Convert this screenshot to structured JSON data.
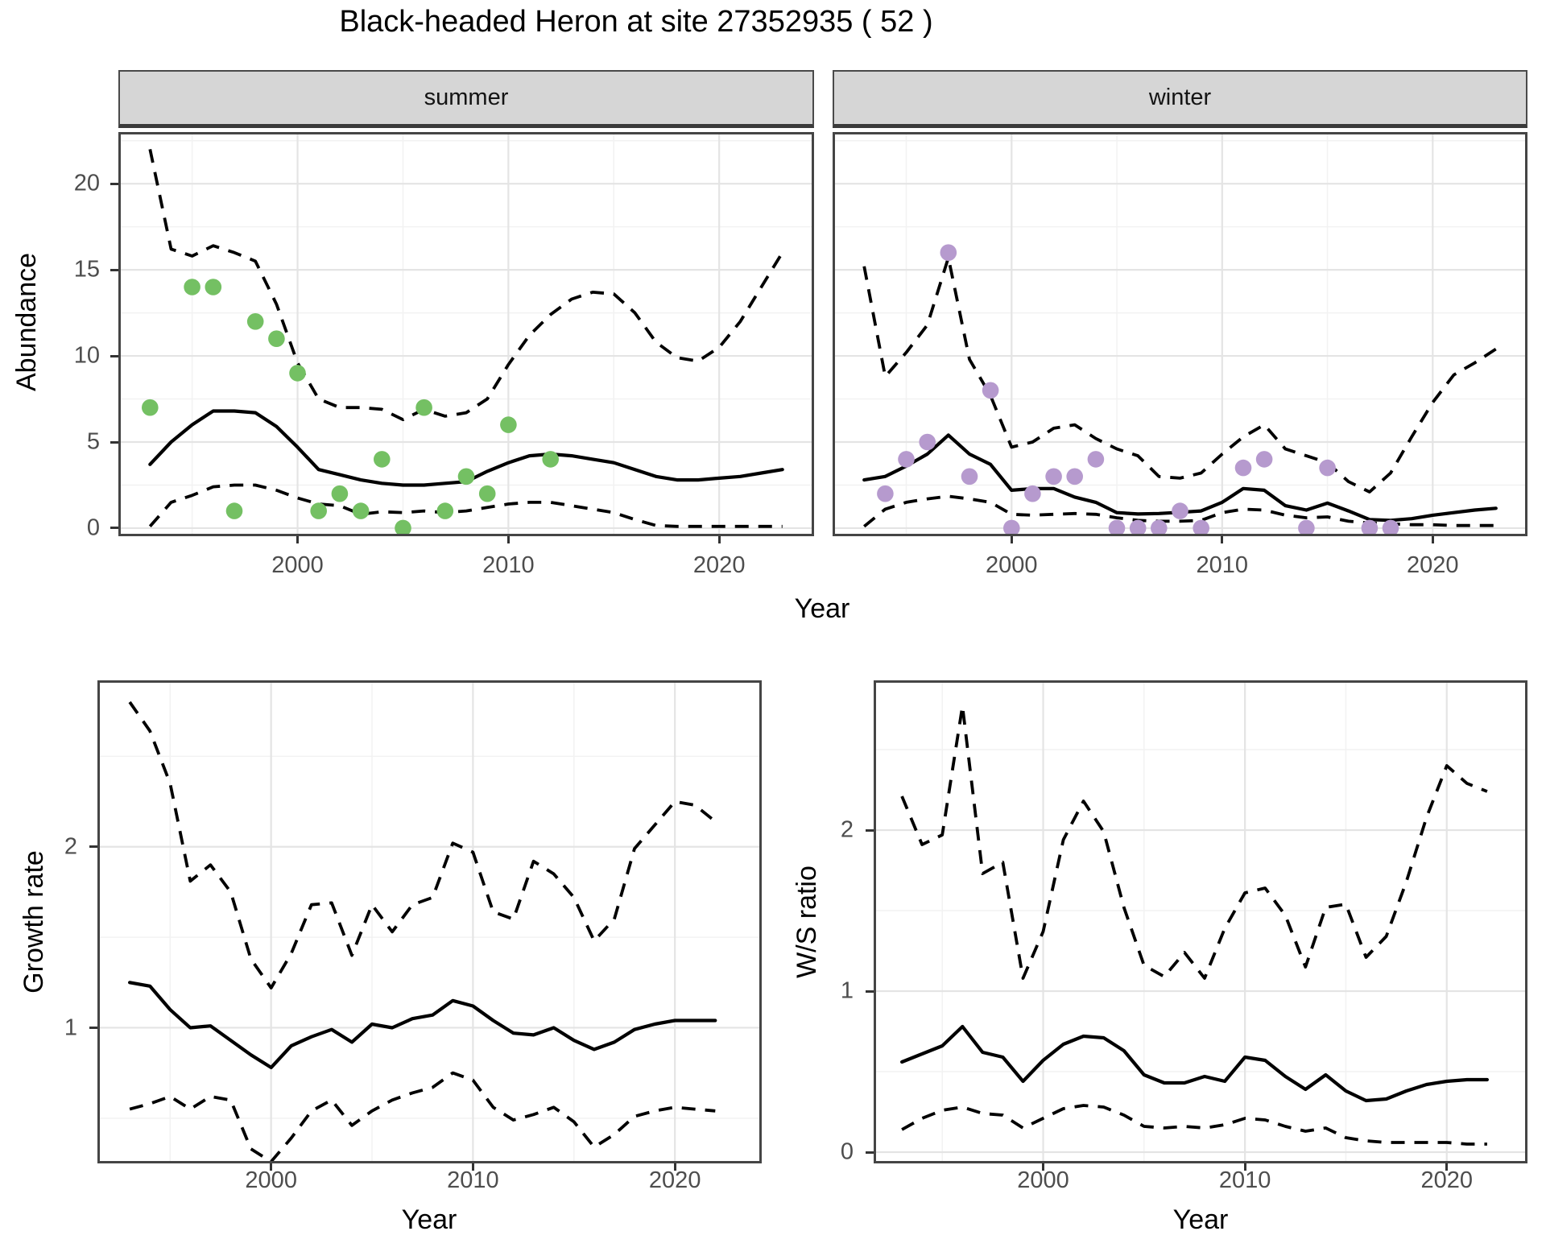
{
  "labels": {
    "title": "Black-headed Heron at site 27352935 ( 52 )",
    "facet_summer": "summer",
    "facet_winter": "winter",
    "y_abundance": "Abundance",
    "y_growth": "Growth rate",
    "y_ws": "W/S ratio",
    "x_year": "Year"
  },
  "colors": {
    "summer_points": "#74c063",
    "winter_points": "#b69ace",
    "line": "#000000",
    "strip_bg": "#d6d6d6",
    "grid_major": "#e4e4e4",
    "grid_minor": "#f2f2f2"
  },
  "chart_data": [
    {
      "key": "summer",
      "type": "line",
      "title": "summer",
      "xlabel": "Year",
      "ylabel": "Abundance",
      "xlim": [
        1991.5,
        2024.5
      ],
      "ylim": [
        -0.47,
        23.0
      ],
      "xticks": [
        2000,
        2010,
        2020
      ],
      "yticks": [
        0,
        5,
        10,
        15,
        20
      ],
      "x": [
        1993,
        1994,
        1995,
        1996,
        1997,
        1998,
        1999,
        2000,
        2001,
        2002,
        2003,
        2004,
        2005,
        2006,
        2007,
        2008,
        2009,
        2010,
        2011,
        2012,
        2013,
        2014,
        2015,
        2016,
        2017,
        2018,
        2019,
        2020,
        2021,
        2022,
        2023
      ],
      "series": [
        {
          "name": "upper95",
          "style": "dashed",
          "values": [
            22.0,
            16.2,
            15.8,
            16.4,
            16.0,
            15.5,
            13.0,
            9.6,
            7.5,
            7.0,
            7.0,
            6.9,
            6.3,
            6.9,
            6.5,
            6.7,
            7.5,
            9.5,
            11.2,
            12.4,
            13.3,
            13.7,
            13.6,
            12.5,
            10.8,
            9.9,
            9.7,
            10.5,
            12.0,
            14.0,
            16.0
          ]
        },
        {
          "name": "median",
          "style": "solid",
          "values": [
            3.7,
            5.0,
            6.0,
            6.8,
            6.8,
            6.7,
            5.9,
            4.7,
            3.4,
            3.1,
            2.8,
            2.6,
            2.5,
            2.5,
            2.6,
            2.7,
            3.3,
            3.8,
            4.2,
            4.3,
            4.2,
            4.0,
            3.8,
            3.4,
            3.0,
            2.8,
            2.8,
            2.9,
            3.0,
            3.2,
            3.4
          ]
        },
        {
          "name": "lower95",
          "style": "dashed",
          "values": [
            0.1,
            1.5,
            1.9,
            2.4,
            2.5,
            2.5,
            2.2,
            1.75,
            1.4,
            1.3,
            0.8,
            0.95,
            0.9,
            1.0,
            0.9,
            1.0,
            1.2,
            1.4,
            1.5,
            1.5,
            1.3,
            1.1,
            0.9,
            0.5,
            0.15,
            0.1,
            0.1,
            0.1,
            0.1,
            0.1,
            0.1
          ]
        }
      ],
      "points": {
        "name": "observed-counts-summer",
        "color": "#74c063",
        "x": [
          1993,
          1995,
          1996,
          1997,
          1998,
          1999,
          2000,
          2001,
          2002,
          2003,
          2004,
          2005,
          2006,
          2007,
          2008,
          2009,
          2010,
          2012
        ],
        "y": [
          7,
          14,
          14,
          1,
          12,
          11,
          9,
          1,
          2,
          1,
          4,
          0,
          7,
          1,
          3,
          2,
          6,
          4
        ]
      }
    },
    {
      "key": "winter",
      "type": "line",
      "title": "winter",
      "xlabel": "Year",
      "ylabel": "Abundance",
      "xlim": [
        1991.5,
        2024.5
      ],
      "ylim": [
        -0.47,
        23.0
      ],
      "xticks": [
        2000,
        2010,
        2020
      ],
      "yticks": [
        0,
        5,
        10,
        15,
        20
      ],
      "x": [
        1993,
        1994,
        1995,
        1996,
        1997,
        1998,
        1999,
        2000,
        2001,
        2002,
        2003,
        2004,
        2005,
        2006,
        2007,
        2008,
        2009,
        2010,
        2011,
        2012,
        2013,
        2014,
        2015,
        2016,
        2017,
        2018,
        2019,
        2020,
        2021,
        2022,
        2023
      ],
      "series": [
        {
          "name": "upper95",
          "style": "dashed",
          "values": [
            15.2,
            8.8,
            10.2,
            11.8,
            15.7,
            9.8,
            7.7,
            4.7,
            5.0,
            5.8,
            6.0,
            5.2,
            4.6,
            4.2,
            3.0,
            2.9,
            3.2,
            4.3,
            5.3,
            6.0,
            4.6,
            4.2,
            3.8,
            2.7,
            2.1,
            3.2,
            5.3,
            7.3,
            8.9,
            9.6,
            10.4
          ]
        },
        {
          "name": "median",
          "style": "solid",
          "values": [
            2.8,
            3.0,
            3.6,
            4.3,
            5.4,
            4.3,
            3.7,
            2.2,
            2.3,
            2.3,
            1.8,
            1.5,
            0.9,
            0.82,
            0.85,
            0.92,
            1.0,
            1.5,
            2.3,
            2.2,
            1.3,
            1.05,
            1.45,
            1.0,
            0.5,
            0.45,
            0.55,
            0.75,
            0.9,
            1.05,
            1.15
          ]
        },
        {
          "name": "lower95",
          "style": "dashed",
          "values": [
            0.1,
            1.1,
            1.5,
            1.7,
            1.85,
            1.7,
            1.5,
            0.8,
            0.75,
            0.8,
            0.85,
            0.8,
            0.6,
            0.45,
            0.4,
            0.4,
            0.45,
            0.9,
            1.1,
            1.05,
            0.75,
            0.6,
            0.65,
            0.4,
            0.3,
            0.25,
            0.2,
            0.2,
            0.15,
            0.15,
            0.15
          ]
        }
      ],
      "points": {
        "name": "observed-counts-winter",
        "color": "#b69ace",
        "x": [
          1994,
          1995,
          1996,
          1997,
          1998,
          1999,
          2000,
          2001,
          2002,
          2003,
          2004,
          2005,
          2006,
          2007,
          2008,
          2009,
          2011,
          2012,
          2014,
          2015,
          2017,
          2018
        ],
        "y": [
          2,
          4,
          5,
          16,
          3,
          8,
          0,
          2,
          3,
          3,
          4,
          0,
          0,
          0,
          1,
          0,
          3.5,
          4,
          0,
          3.5,
          0,
          0
        ]
      }
    },
    {
      "key": "growth",
      "type": "line",
      "title": "Growth rate",
      "xlabel": "Year",
      "ylabel": "Growth rate",
      "xlim": [
        1991.4,
        2024.3
      ],
      "ylim": [
        0.25,
        2.92
      ],
      "xticks": [
        2000,
        2010,
        2020
      ],
      "yticks": [
        1,
        2
      ],
      "x": [
        1993,
        1994,
        1995,
        1996,
        1997,
        1998,
        1999,
        2000,
        2001,
        2002,
        2003,
        2004,
        2005,
        2006,
        2007,
        2008,
        2009,
        2010,
        2011,
        2012,
        2013,
        2014,
        2015,
        2016,
        2017,
        2018,
        2019,
        2020,
        2021,
        2022
      ],
      "series": [
        {
          "name": "upper95",
          "style": "dashed",
          "values": [
            2.8,
            2.64,
            2.35,
            1.81,
            1.9,
            1.75,
            1.38,
            1.22,
            1.41,
            1.68,
            1.69,
            1.4,
            1.68,
            1.53,
            1.68,
            1.72,
            2.02,
            1.97,
            1.64,
            1.6,
            1.92,
            1.85,
            1.72,
            1.48,
            1.6,
            1.99,
            2.12,
            2.25,
            2.23,
            2.14
          ]
        },
        {
          "name": "median",
          "style": "solid",
          "values": [
            1.25,
            1.23,
            1.1,
            1.0,
            1.01,
            0.93,
            0.85,
            0.78,
            0.9,
            0.95,
            0.99,
            0.92,
            1.02,
            1.0,
            1.05,
            1.07,
            1.15,
            1.12,
            1.04,
            0.97,
            0.96,
            1.0,
            0.93,
            0.88,
            0.92,
            0.99,
            1.02,
            1.04,
            1.04,
            1.04
          ]
        },
        {
          "name": "lower95",
          "style": "dashed",
          "values": [
            0.55,
            0.58,
            0.62,
            0.55,
            0.62,
            0.6,
            0.33,
            0.26,
            0.39,
            0.54,
            0.6,
            0.46,
            0.54,
            0.6,
            0.64,
            0.67,
            0.75,
            0.71,
            0.56,
            0.49,
            0.52,
            0.56,
            0.48,
            0.34,
            0.41,
            0.51,
            0.54,
            0.56,
            0.55,
            0.54
          ]
        }
      ],
      "points": null
    },
    {
      "key": "ws",
      "type": "line",
      "title": "W/S ratio",
      "xlabel": "Year",
      "ylabel": "W/S ratio",
      "xlim": [
        1991.6,
        2024.0
      ],
      "ylim": [
        -0.07,
        2.93
      ],
      "xticks": [
        2000,
        2010,
        2020
      ],
      "yticks": [
        0,
        1,
        2
      ],
      "x": [
        1993,
        1994,
        1995,
        1996,
        1997,
        1998,
        1999,
        2000,
        2001,
        2002,
        2003,
        2004,
        2005,
        2006,
        2007,
        2008,
        2009,
        2010,
        2011,
        2012,
        2013,
        2014,
        2015,
        2016,
        2017,
        2018,
        2019,
        2020,
        2021,
        2022
      ],
      "series": [
        {
          "name": "upper95",
          "style": "dashed",
          "values": [
            2.21,
            1.91,
            1.97,
            2.77,
            1.73,
            1.8,
            1.08,
            1.37,
            1.94,
            2.18,
            1.99,
            1.52,
            1.16,
            1.09,
            1.24,
            1.08,
            1.39,
            1.61,
            1.64,
            1.47,
            1.15,
            1.52,
            1.54,
            1.21,
            1.34,
            1.68,
            2.08,
            2.4,
            2.29,
            2.24
          ]
        },
        {
          "name": "median",
          "style": "solid",
          "values": [
            0.56,
            0.61,
            0.66,
            0.78,
            0.62,
            0.59,
            0.44,
            0.57,
            0.67,
            0.72,
            0.71,
            0.63,
            0.48,
            0.43,
            0.43,
            0.47,
            0.44,
            0.59,
            0.57,
            0.47,
            0.39,
            0.48,
            0.38,
            0.32,
            0.33,
            0.38,
            0.42,
            0.44,
            0.45,
            0.45
          ]
        },
        {
          "name": "lower95",
          "style": "dashed",
          "values": [
            0.14,
            0.21,
            0.26,
            0.28,
            0.24,
            0.23,
            0.15,
            0.21,
            0.27,
            0.29,
            0.28,
            0.23,
            0.16,
            0.15,
            0.16,
            0.15,
            0.17,
            0.21,
            0.2,
            0.16,
            0.13,
            0.15,
            0.09,
            0.07,
            0.06,
            0.06,
            0.06,
            0.06,
            0.05,
            0.05
          ]
        }
      ],
      "points": null
    }
  ]
}
